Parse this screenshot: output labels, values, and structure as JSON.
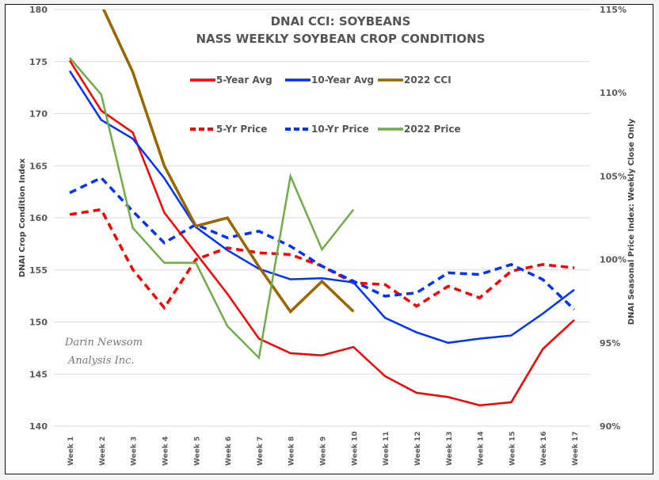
{
  "chart_data": {
    "type": "line",
    "title": "DNAI CCI: SOYBEANS",
    "subtitle": "NASS WEEKLY SOYBEAN CROP CONDITIONS",
    "ylabel": "DNAI Crop Condition Index",
    "y2label": "DNAI Seasonal Price Index: Weekly Close Only",
    "xlabel": "",
    "categories": [
      "Week 1",
      "Week 2",
      "Week 3",
      "Week 4",
      "Week 5",
      "Week 6",
      "Week 7",
      "Week 8",
      "Week 9",
      "Week 10",
      "Week 11",
      "Week 12",
      "Week 13",
      "Week 14",
      "Week 15",
      "Week 16",
      "Week 17"
    ],
    "ylim": [
      140,
      180
    ],
    "yticks": [
      140,
      145,
      150,
      155,
      160,
      165,
      170,
      175,
      180
    ],
    "y2lim": [
      90,
      115
    ],
    "y2ticks": [
      "90%",
      "95%",
      "100%",
      "105%",
      "110%",
      "115%"
    ],
    "y2tick_values": [
      90,
      95,
      100,
      105,
      110,
      115
    ],
    "grid": true,
    "legend_position": "top-center",
    "watermark": [
      "Darin Newsom",
      "Analysis Inc."
    ],
    "series": [
      {
        "name": "5-Year Avg",
        "axis": "left",
        "style": "solid",
        "color": "#ff0000",
        "values": [
          175.1,
          170.3,
          168.2,
          160.5,
          156.6,
          152.7,
          148.4,
          147.0,
          146.8,
          147.6,
          144.8,
          143.2,
          142.8,
          142.0,
          142.3,
          147.4,
          150.2
        ]
      },
      {
        "name": "10-Year Avg",
        "axis": "left",
        "style": "solid",
        "color": "#0033ff",
        "values": [
          174.1,
          169.4,
          167.6,
          163.8,
          159.1,
          156.9,
          155.1,
          154.1,
          154.2,
          153.8,
          150.4,
          149.0,
          148.0,
          148.4,
          148.7,
          150.8,
          153.1
        ]
      },
      {
        "name": "2022 CCI",
        "axis": "left",
        "style": "solid",
        "color": "#996600",
        "values": [
          null,
          180.5,
          174.0,
          165.0,
          159.2,
          160.0,
          155.3,
          151.0,
          153.9,
          151.0,
          null,
          null,
          null,
          null,
          null,
          null,
          null
        ]
      },
      {
        "name": "5-Yr Price",
        "axis": "right",
        "style": "dashed",
        "color": "#ff0000",
        "values": [
          102.7,
          103.0,
          99.4,
          97.1,
          100.0,
          100.7,
          100.4,
          100.3,
          99.6,
          98.6,
          98.5,
          97.2,
          98.4,
          97.7,
          99.3,
          99.7,
          99.5
        ]
      },
      {
        "name": "10-Yr Price",
        "axis": "right",
        "style": "dashed",
        "color": "#0033ff",
        "values": [
          104.0,
          104.9,
          102.9,
          101.0,
          102.1,
          101.3,
          101.7,
          100.8,
          99.6,
          98.7,
          97.8,
          98.0,
          99.2,
          99.1,
          99.7,
          98.8,
          97.0
        ]
      },
      {
        "name": "2022 Price",
        "axis": "right",
        "style": "solid-thin",
        "color": "#70ad47",
        "values": [
          112.1,
          109.9,
          101.9,
          99.8,
          99.8,
          96.0,
          94.1,
          105.0,
          100.6,
          103.0,
          null,
          null,
          null,
          null,
          null,
          null,
          null
        ]
      }
    ]
  }
}
